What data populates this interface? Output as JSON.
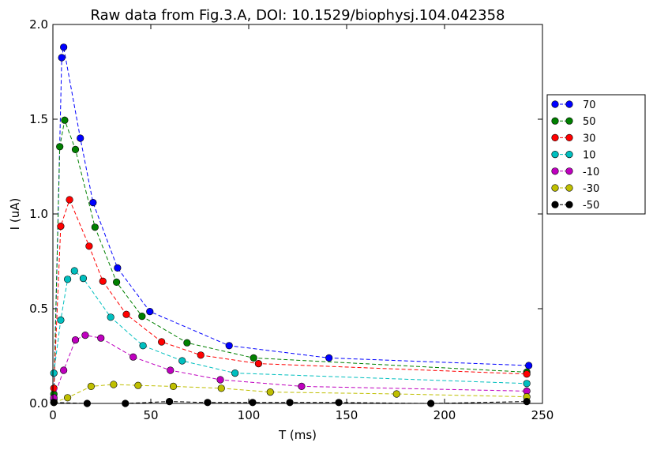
{
  "chart_data": {
    "type": "line",
    "title": "Raw data from Fig.3.A, DOI: 10.1529/biophysj.104.042358",
    "xlabel": "T (ms)",
    "ylabel": "I (uA)",
    "xlim": [
      0,
      250
    ],
    "ylim": [
      0,
      2.0
    ],
    "xticks": [
      0,
      50,
      100,
      150,
      200,
      250
    ],
    "xtick_labels": [
      "0",
      "50",
      "100",
      "150",
      "200",
      "250"
    ],
    "yticks": [
      0,
      0.5,
      1.0,
      1.5,
      2.0
    ],
    "ytick_labels": [
      "0.0",
      "0.5",
      "1.0",
      "1.5",
      "2.0"
    ],
    "grid": false,
    "legend_position": "right, outside plot",
    "line_style": "dashed with circle markers",
    "series": [
      {
        "name": "70",
        "color": "#0000ff",
        "x": [
          0.5,
          4.5,
          5.5,
          14,
          20.5,
          33,
          49.5,
          90,
          141,
          243
        ],
        "y": [
          0.02,
          1.825,
          1.88,
          1.4,
          1.06,
          0.715,
          0.485,
          0.305,
          0.24,
          0.2
        ]
      },
      {
        "name": "50",
        "color": "#008000",
        "x": [
          0.5,
          3.5,
          6,
          11.5,
          21.5,
          32.5,
          45.5,
          68.5,
          102.5,
          242
        ],
        "y": [
          0.05,
          1.355,
          1.495,
          1.34,
          0.93,
          0.64,
          0.46,
          0.32,
          0.24,
          0.165
        ]
      },
      {
        "name": "30",
        "color": "#ff0000",
        "x": [
          0.5,
          4,
          8.5,
          18.5,
          25.5,
          37.5,
          55.5,
          75.5,
          105,
          242
        ],
        "y": [
          0.08,
          0.935,
          1.075,
          0.83,
          0.645,
          0.47,
          0.325,
          0.255,
          0.21,
          0.155
        ]
      },
      {
        "name": "10",
        "color": "#00bfbf",
        "x": [
          0.5,
          4,
          7.5,
          11,
          15.5,
          29.5,
          46,
          66,
          93,
          242
        ],
        "y": [
          0.16,
          0.44,
          0.655,
          0.7,
          0.66,
          0.455,
          0.305,
          0.225,
          0.16,
          0.105
        ]
      },
      {
        "name": "-10",
        "color": "#bf00bf",
        "x": [
          0.5,
          5.5,
          11.5,
          16.5,
          24.5,
          41,
          60,
          85.5,
          127,
          242
        ],
        "y": [
          0.03,
          0.175,
          0.335,
          0.36,
          0.345,
          0.245,
          0.175,
          0.125,
          0.09,
          0.065
        ]
      },
      {
        "name": "-30",
        "color": "#bfbf00",
        "x": [
          0.5,
          7.5,
          19.5,
          31,
          43.5,
          61.5,
          86,
          111,
          175.5,
          242
        ],
        "y": [
          0.005,
          0.03,
          0.09,
          0.1,
          0.095,
          0.09,
          0.08,
          0.06,
          0.05,
          0.035
        ]
      },
      {
        "name": "-50",
        "color": "#000000",
        "x": [
          0.5,
          17.5,
          37,
          59.5,
          79,
          102,
          121,
          146,
          193,
          242
        ],
        "y": [
          0.005,
          0.0,
          0.0,
          0.01,
          0.005,
          0.005,
          0.005,
          0.005,
          0.0,
          0.01
        ]
      }
    ]
  }
}
